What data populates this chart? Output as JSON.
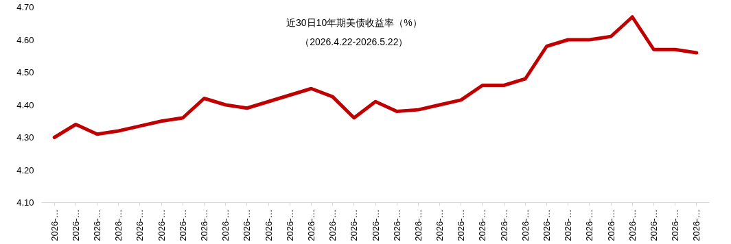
{
  "chart_data": {
    "type": "line",
    "title": "近30日10年期美债收益率（%）",
    "subtitle": "（2026.4.22-2026.5.22）",
    "categories": [
      "2026-…",
      "2026-…",
      "2026-…",
      "2026-…",
      "2026-…",
      "2026-…",
      "2026-…",
      "2026-…",
      "2026-…",
      "2026-…",
      "2026-…",
      "2026-…",
      "2026-…",
      "2026-…",
      "2026-…",
      "2026-…",
      "2026-…",
      "2026-…",
      "2026-…",
      "2026-…",
      "2026-…",
      "2026-…",
      "2026-…",
      "2026-…",
      "2026-…",
      "2026-…",
      "2026-…",
      "2026-…",
      "2026-…",
      "2026-…",
      "2026-…"
    ],
    "series": [
      {
        "color": "#c00000",
        "values": [
          4.3,
          4.34,
          4.31,
          4.32,
          4.335,
          4.35,
          4.36,
          4.42,
          4.4,
          4.39,
          4.41,
          4.43,
          4.45,
          4.425,
          4.36,
          4.41,
          4.38,
          4.385,
          4.4,
          4.415,
          4.46,
          4.46,
          4.48,
          4.58,
          4.6,
          4.6,
          4.61,
          4.67,
          4.57,
          4.57,
          4.56
        ]
      }
    ],
    "ylim": [
      4.1,
      4.7
    ],
    "yticks": [
      {
        "value": 4.1,
        "label": "4.10"
      },
      {
        "value": 4.2,
        "label": "4.20"
      },
      {
        "value": 4.3,
        "label": "4.30"
      },
      {
        "value": 4.4,
        "label": "4.40"
      },
      {
        "value": 4.5,
        "label": "4.50"
      },
      {
        "value": 4.6,
        "label": "4.60"
      },
      {
        "value": 4.7,
        "label": "4.70"
      }
    ],
    "marker": "none",
    "line_style": "solid"
  }
}
